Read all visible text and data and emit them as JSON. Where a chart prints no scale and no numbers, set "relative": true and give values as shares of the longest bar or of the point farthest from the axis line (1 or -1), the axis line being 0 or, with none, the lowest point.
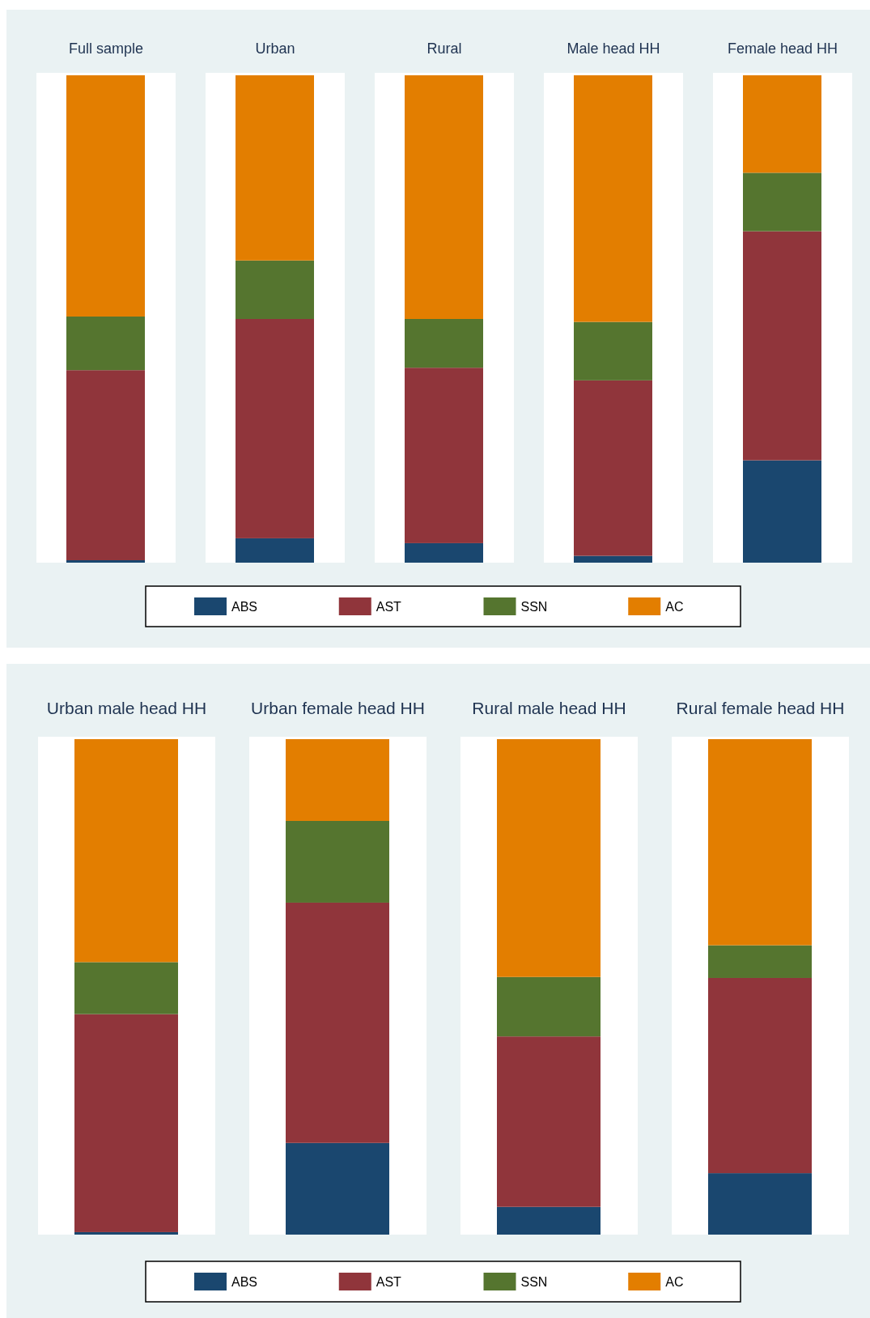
{
  "chart_data": [
    {
      "type": "bar",
      "stacked": true,
      "relative": true,
      "title": "Full sample",
      "categories": [
        null
      ],
      "series": [
        {
          "color": "#1a476f",
          "values": [
            0.005
          ]
        },
        {
          "color": "#90353b",
          "values": [
            0.39
          ]
        },
        {
          "color": "#55752f",
          "values": [
            0.11
          ]
        },
        {
          "color": "#e37e00",
          "values": [
            0.495
          ]
        }
      ]
    },
    {
      "type": "bar",
      "stacked": true,
      "relative": true,
      "title": "Urban",
      "categories": [
        null
      ],
      "series": [
        {
          "color": "#1a476f",
          "values": [
            0.05
          ]
        },
        {
          "color": "#90353b",
          "values": [
            0.45
          ]
        },
        {
          "color": "#55752f",
          "values": [
            0.12
          ]
        },
        {
          "color": "#e37e00",
          "values": [
            0.38
          ]
        }
      ]
    },
    {
      "type": "bar",
      "stacked": true,
      "relative": true,
      "title": "Rural",
      "categories": [
        null
      ],
      "series": [
        {
          "color": "#1a476f",
          "values": [
            0.04
          ]
        },
        {
          "color": "#90353b",
          "values": [
            0.36
          ]
        },
        {
          "color": "#55752f",
          "values": [
            0.1
          ]
        },
        {
          "color": "#e37e00",
          "values": [
            0.5
          ]
        }
      ]
    },
    {
      "type": "bar",
      "stacked": true,
      "relative": true,
      "title": "Male head HH",
      "categories": [
        null
      ],
      "series": [
        {
          "color": "#1a476f",
          "values": [
            0.014
          ]
        },
        {
          "color": "#90353b",
          "values": [
            0.36
          ]
        },
        {
          "color": "#55752f",
          "values": [
            0.12
          ]
        },
        {
          "color": "#e37e00",
          "values": [
            0.506
          ]
        }
      ]
    },
    {
      "type": "bar",
      "stacked": true,
      "relative": true,
      "title": "Female head HH",
      "legend": "bottom",
      "categories": [
        null
      ],
      "series": [
        {
          "name": "ABS",
          "color": "#1a476f",
          "values": [
            0.21
          ]
        },
        {
          "name": "AST",
          "color": "#90353b",
          "values": [
            0.47
          ]
        },
        {
          "name": "SSN",
          "color": "#55752f",
          "values": [
            0.12
          ]
        },
        {
          "name": "AC",
          "color": "#e37e00",
          "values": [
            0.2
          ]
        }
      ]
    },
    {
      "type": "bar",
      "stacked": true,
      "relative": true,
      "title": "Urban male head HH",
      "categories": [
        null
      ],
      "series": [
        {
          "color": "#1a476f",
          "values": [
            0.005
          ]
        },
        {
          "color": "#90353b",
          "values": [
            0.44
          ]
        },
        {
          "color": "#55752f",
          "values": [
            0.105
          ]
        },
        {
          "color": "#e37e00",
          "values": [
            0.45
          ]
        }
      ]
    },
    {
      "type": "bar",
      "stacked": true,
      "relative": true,
      "title": "Urban female head HH",
      "categories": [
        null
      ],
      "series": [
        {
          "color": "#1a476f",
          "values": [
            0.185
          ]
        },
        {
          "color": "#90353b",
          "values": [
            0.485
          ]
        },
        {
          "color": "#55752f",
          "values": [
            0.165
          ]
        },
        {
          "color": "#e37e00",
          "values": [
            0.165
          ]
        }
      ]
    },
    {
      "type": "bar",
      "stacked": true,
      "relative": true,
      "title": "Rural male head HH",
      "categories": [
        null
      ],
      "series": [
        {
          "color": "#1a476f",
          "values": [
            0.056
          ]
        },
        {
          "color": "#90353b",
          "values": [
            0.344
          ]
        },
        {
          "color": "#55752f",
          "values": [
            0.12
          ]
        },
        {
          "color": "#e37e00",
          "values": [
            0.48
          ]
        }
      ]
    },
    {
      "type": "bar",
      "stacked": true,
      "relative": true,
      "title": "Rural female head HH",
      "legend": "bottom",
      "categories": [
        null
      ],
      "series": [
        {
          "name": "ABS",
          "color": "#1a476f",
          "values": [
            0.124
          ]
        },
        {
          "name": "AST",
          "color": "#90353b",
          "values": [
            0.394
          ]
        },
        {
          "name": "SSN",
          "color": "#55752f",
          "values": [
            0.066
          ]
        },
        {
          "name": "AC",
          "color": "#e37e00",
          "values": [
            0.416
          ]
        }
      ]
    }
  ]
}
